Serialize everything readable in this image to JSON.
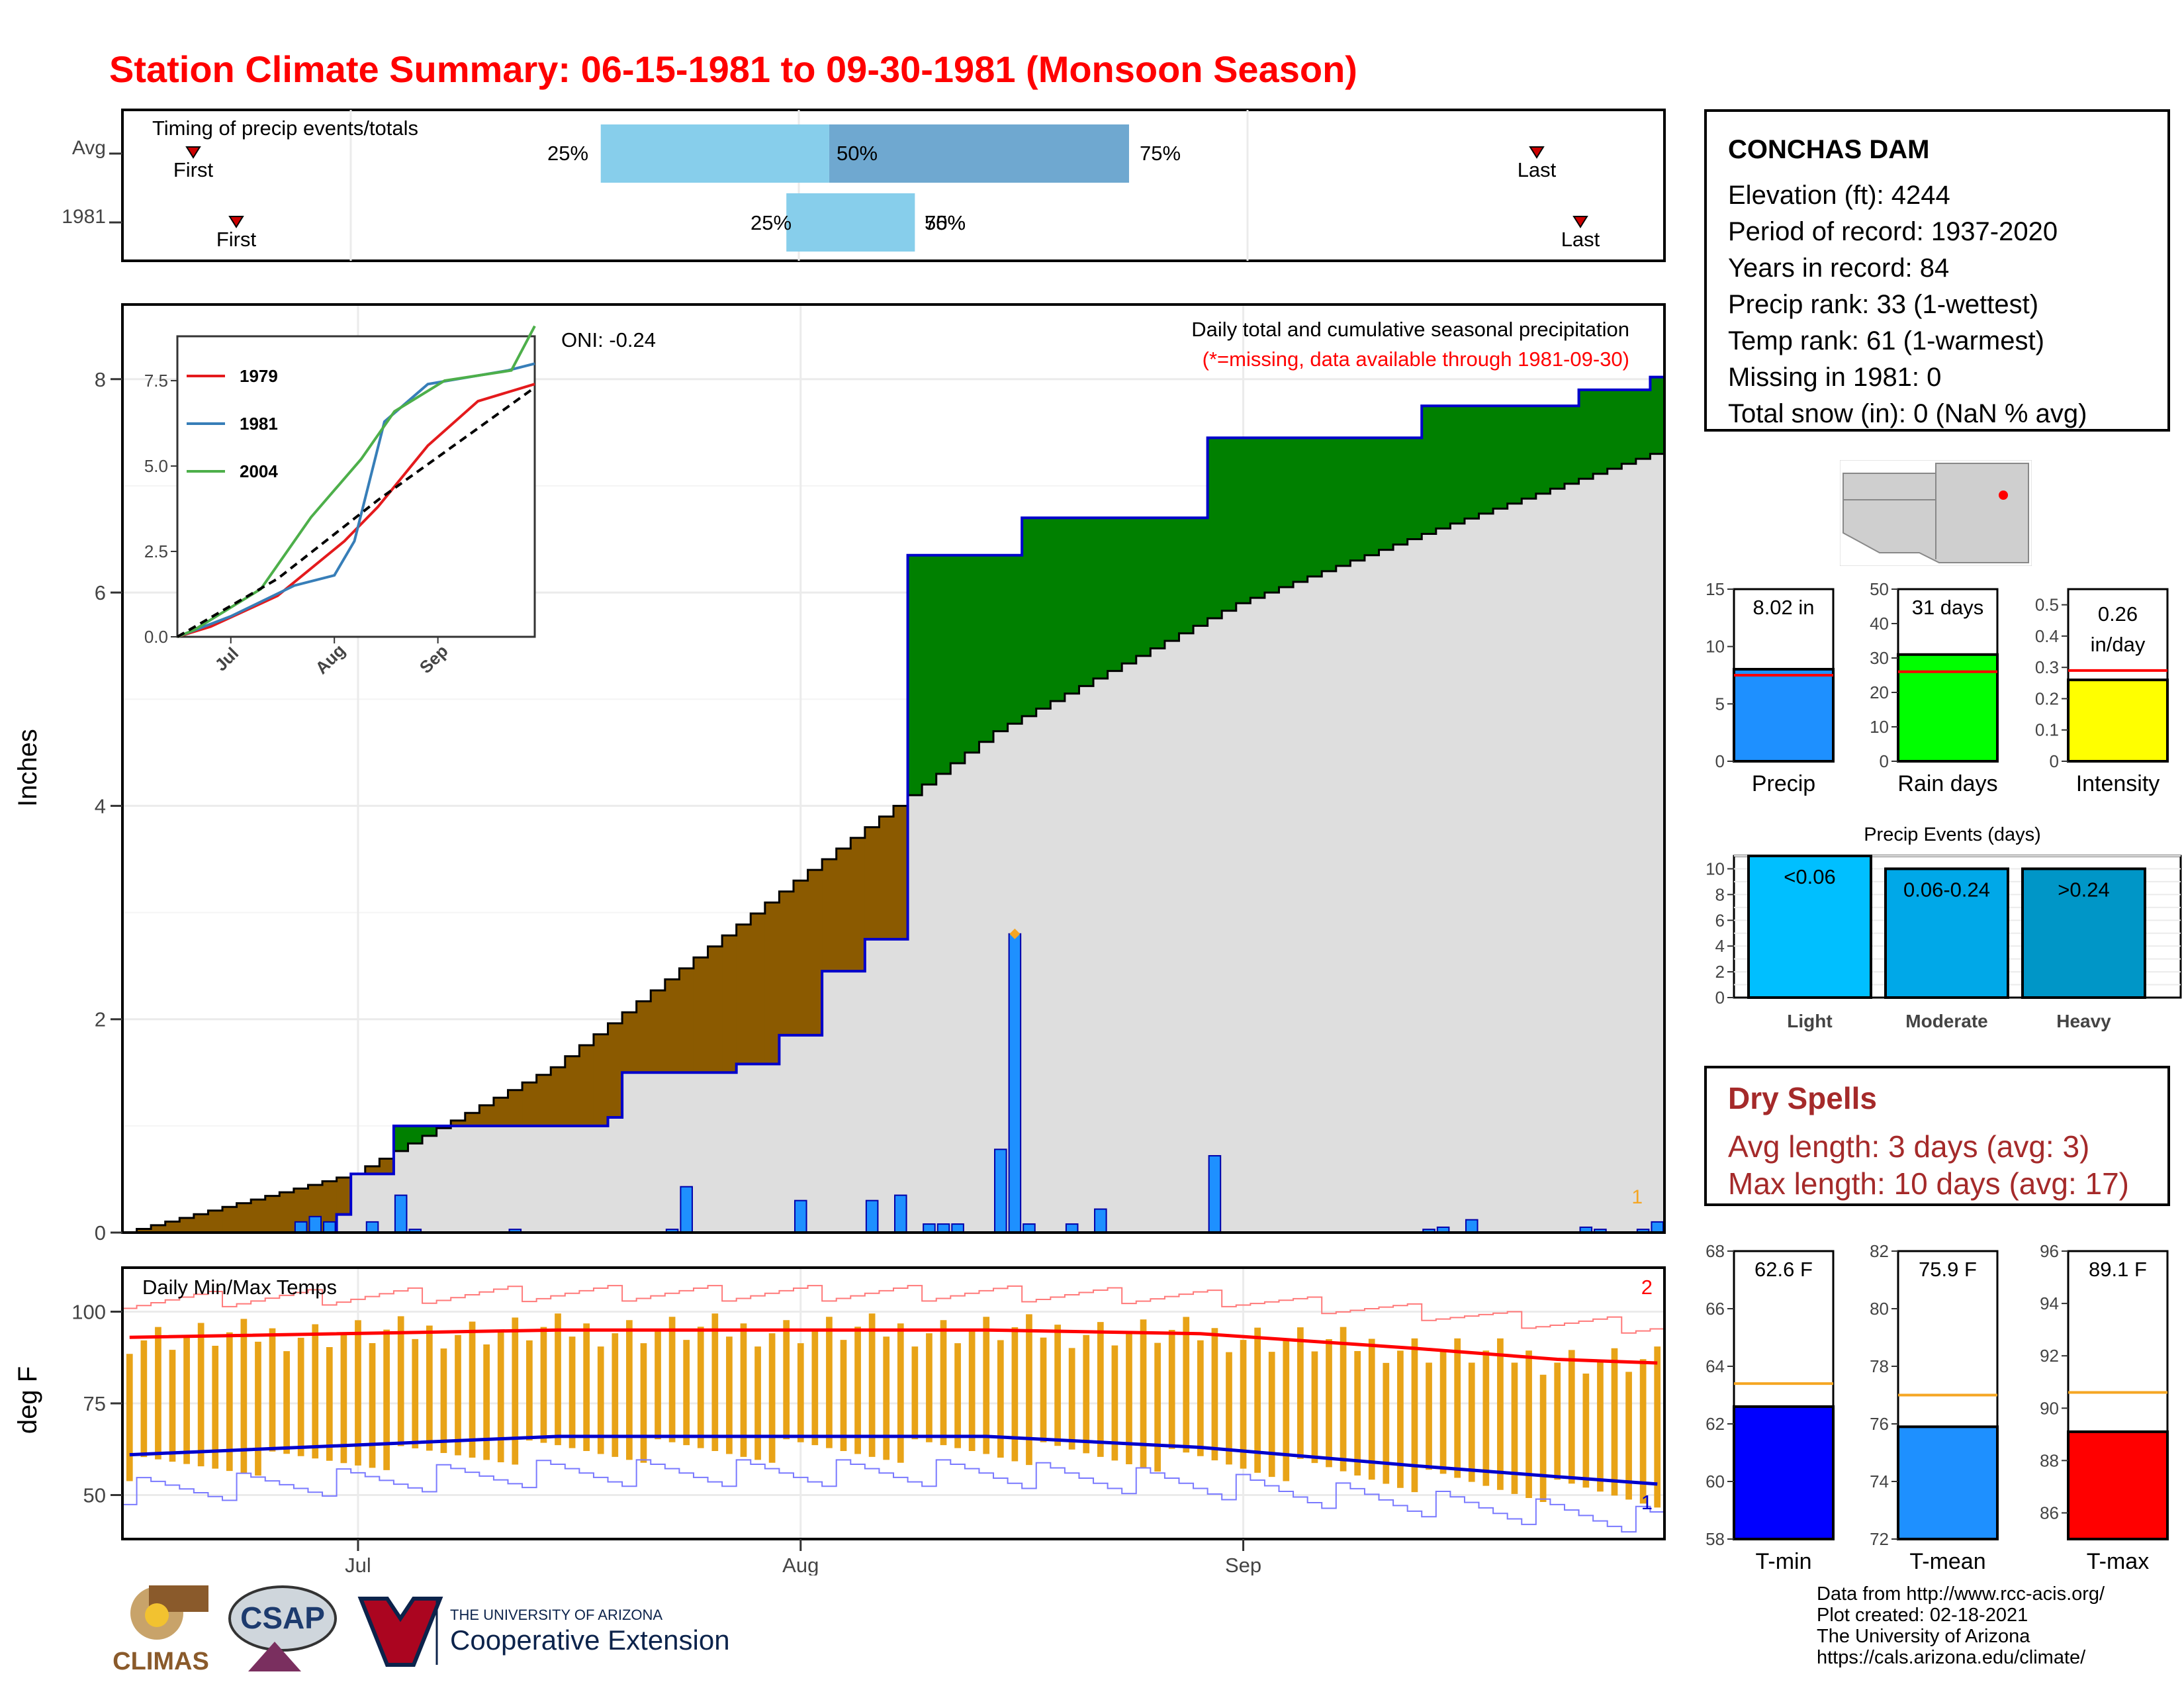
{
  "title": "Station Climate Summary: 06-15-1981 to 09-30-1981 (Monsoon Season)",
  "timing": {
    "label": "Timing of precip events/totals",
    "rows": [
      {
        "name": "Avg",
        "first_label": "First",
        "last_label": "Last",
        "pct": [
          "25%",
          "50%",
          "75%"
        ]
      },
      {
        "name": "1981",
        "first_label": "First",
        "last_label": "Last",
        "pct": [
          "25%",
          "50%",
          "75%"
        ]
      }
    ]
  },
  "station": {
    "name": "CONCHAS DAM",
    "lines": [
      "Elevation (ft): 4244",
      "Period of record: 1937-2020",
      "Years in record: 84",
      "Precip rank: 33 (1-wettest)",
      "Temp rank: 61 (1-warmest)",
      "Missing in 1981: 0",
      "Total snow (in): 0 (NaN % avg)"
    ]
  },
  "precip_panel": {
    "oni": "ONI: -0.24",
    "heading": "Daily total and cumulative seasonal precipitation",
    "note": "(*=missing, data available through 1981-09-30)",
    "ylabel": "Inches",
    "corner_num": "1"
  },
  "temp_panel": {
    "label": "Daily Min/Max Temps",
    "ylabel": "deg F",
    "corner_top": "2",
    "corner_bottom": "1"
  },
  "month_ticks": [
    "Jul",
    "Aug",
    "Sep"
  ],
  "stat_bars": [
    {
      "name": "Precip",
      "value_label": "8.02 in"
    },
    {
      "name": "Rain days",
      "value_label": "31 days"
    },
    {
      "name": "Intensity",
      "value_label": "0.26 in/day"
    }
  ],
  "events": {
    "title": "Precip Events (days)",
    "categories": [
      "Light",
      "Moderate",
      "Heavy"
    ],
    "bar_labels": [
      "<0.06",
      "0.06-0.24",
      ">0.24"
    ]
  },
  "dry_spells": {
    "title": "Dry Spells",
    "avg_line": "Avg length: 3 days (avg: 3)",
    "max_line": "Max length: 10 days (avg: 17)"
  },
  "temp_bars": [
    {
      "name": "T-min",
      "value_label": "62.6 F"
    },
    {
      "name": "T-mean",
      "value_label": "75.9 F"
    },
    {
      "name": "T-max",
      "value_label": "89.1 F"
    }
  ],
  "inset_legend": [
    "1979",
    "1981",
    "2004"
  ],
  "credits": [
    "Data from http://www.rcc-acis.org/",
    "Plot created: 02-18-2021",
    "The University of Arizona",
    "https://cals.arizona.edu/climate/"
  ],
  "logos": {
    "climas": "CLIMAS",
    "csap": "CSAP",
    "ua_small": "THE UNIVERSITY OF ARIZONA",
    "ua_big": "Cooperative Extension"
  },
  "colors": {
    "title": "#ff0000",
    "cum_obs_line": "#0000cc",
    "surplus": "#008000",
    "deficit": "#8b5a00",
    "avg_fill": "#dedede",
    "daily_bar": "#1e90ff",
    "tmax": "#ff0000",
    "tmin": "#0000cc",
    "temp_range": "#e8a317"
  },
  "chart_data": [
    {
      "type": "bar",
      "title": "Timing of precip events/totals",
      "categories": [
        "Avg",
        "1981"
      ],
      "x_range": [
        "1981-06-15",
        "1981-09-30"
      ],
      "series": [
        {
          "name": "First",
          "values": [
            "1981-06-20",
            "1981-06-26"
          ]
        },
        {
          "name": "25%",
          "values": [
            "1981-07-18",
            "1981-07-31"
          ]
        },
        {
          "name": "50%",
          "values": [
            "1981-08-03",
            "1981-08-09"
          ]
        },
        {
          "name": "75%",
          "values": [
            "1981-08-24",
            "1981-08-09"
          ]
        },
        {
          "name": "Last",
          "values": [
            "1981-09-25",
            "1981-09-30"
          ]
        }
      ]
    },
    {
      "type": "area",
      "title": "Daily total and cumulative seasonal precipitation",
      "xlabel": "",
      "ylabel": "Inches",
      "x_range": [
        "1981-06-15",
        "1981-09-30"
      ],
      "ylim": [
        0,
        8.7
      ],
      "y_ticks": [
        0,
        2,
        4,
        6,
        8
      ],
      "cumulative_1981": [
        {
          "date": "1981-06-15",
          "value": 0.0
        },
        {
          "date": "1981-06-30",
          "value": 0.17
        },
        {
          "date": "1981-07-01",
          "value": 0.55
        },
        {
          "date": "1981-07-04",
          "value": 1.0
        },
        {
          "date": "1981-07-19",
          "value": 1.08
        },
        {
          "date": "1981-07-20",
          "value": 1.5
        },
        {
          "date": "1981-07-28",
          "value": 1.58
        },
        {
          "date": "1981-07-31",
          "value": 1.85
        },
        {
          "date": "1981-08-03",
          "value": 2.45
        },
        {
          "date": "1981-08-06",
          "value": 2.75
        },
        {
          "date": "1981-08-09",
          "value": 6.35
        },
        {
          "date": "1981-08-17",
          "value": 6.7
        },
        {
          "date": "1981-08-30",
          "value": 7.45
        },
        {
          "date": "1981-09-14",
          "value": 7.75
        },
        {
          "date": "1981-09-25",
          "value": 7.9
        },
        {
          "date": "1981-09-30",
          "value": 8.02
        }
      ],
      "average_cumulative": [
        {
          "date": "1981-06-15",
          "value": 0.0
        },
        {
          "date": "1981-07-01",
          "value": 0.55
        },
        {
          "date": "1981-07-15",
          "value": 1.55
        },
        {
          "date": "1981-08-01",
          "value": 3.3
        },
        {
          "date": "1981-08-09",
          "value": 4.1
        },
        {
          "date": "1981-08-15",
          "value": 4.7
        },
        {
          "date": "1981-09-01",
          "value": 5.9
        },
        {
          "date": "1981-09-15",
          "value": 6.6
        },
        {
          "date": "1981-09-30",
          "value": 7.3
        }
      ],
      "daily_precip": [
        {
          "date": "1981-06-27",
          "value": 0.1
        },
        {
          "date": "1981-06-28",
          "value": 0.15
        },
        {
          "date": "1981-06-29",
          "value": 0.1
        },
        {
          "date": "1981-07-02",
          "value": 0.1
        },
        {
          "date": "1981-07-04",
          "value": 0.35
        },
        {
          "date": "1981-07-05",
          "value": 0.03
        },
        {
          "date": "1981-07-12",
          "value": 0.03
        },
        {
          "date": "1981-07-23",
          "value": 0.03
        },
        {
          "date": "1981-07-24",
          "value": 0.43
        },
        {
          "date": "1981-08-01",
          "value": 0.3
        },
        {
          "date": "1981-08-06",
          "value": 0.3
        },
        {
          "date": "1981-08-08",
          "value": 0.35
        },
        {
          "date": "1981-08-10",
          "value": 0.08
        },
        {
          "date": "1981-08-11",
          "value": 0.08
        },
        {
          "date": "1981-08-12",
          "value": 0.08
        },
        {
          "date": "1981-08-15",
          "value": 0.78
        },
        {
          "date": "1981-08-16",
          "value": 2.8
        },
        {
          "date": "1981-08-17",
          "value": 0.08
        },
        {
          "date": "1981-08-20",
          "value": 0.08
        },
        {
          "date": "1981-08-22",
          "value": 0.22
        },
        {
          "date": "1981-08-30",
          "value": 0.72
        },
        {
          "date": "1981-09-14",
          "value": 0.03
        },
        {
          "date": "1981-09-15",
          "value": 0.05
        },
        {
          "date": "1981-09-17",
          "value": 0.12
        },
        {
          "date": "1981-09-25",
          "value": 0.05
        },
        {
          "date": "1981-09-26",
          "value": 0.03
        },
        {
          "date": "1981-09-29",
          "value": 0.03
        },
        {
          "date": "1981-09-30",
          "value": 0.1
        }
      ]
    },
    {
      "type": "line",
      "title": "",
      "x_range": [
        "1981-06-15",
        "1981-09-30"
      ],
      "ylim": [
        0,
        8.8
      ],
      "y_ticks": [
        0.0,
        2.5,
        5.0,
        7.5
      ],
      "x_ticks": [
        "Jul",
        "Aug",
        "Sep"
      ],
      "series": [
        {
          "name": "1979",
          "values": [
            [
              0,
              0
            ],
            [
              10,
              0.3
            ],
            [
              30,
              1.2
            ],
            [
              50,
              2.8
            ],
            [
              60,
              3.8
            ],
            [
              75,
              5.6
            ],
            [
              90,
              6.9
            ],
            [
              107,
              7.4
            ]
          ]
        },
        {
          "name": "1981",
          "values": [
            [
              0,
              0
            ],
            [
              16,
              0.6
            ],
            [
              35,
              1.5
            ],
            [
              47,
              1.8
            ],
            [
              53,
              2.8
            ],
            [
              62,
              6.3
            ],
            [
              75,
              7.4
            ],
            [
              99,
              7.8
            ],
            [
              107,
              8.0
            ]
          ]
        },
        {
          "name": "2004",
          "values": [
            [
              0,
              0
            ],
            [
              5,
              0.2
            ],
            [
              25,
              1.4
            ],
            [
              40,
              3.5
            ],
            [
              55,
              5.2
            ],
            [
              65,
              6.6
            ],
            [
              80,
              7.5
            ],
            [
              100,
              7.8
            ],
            [
              107,
              9.1
            ]
          ]
        },
        {
          "name": "",
          "values": [
            [
              0,
              0
            ],
            [
              30,
              1.7
            ],
            [
              60,
              4.0
            ],
            [
              107,
              7.3
            ]
          ]
        }
      ]
    },
    {
      "type": "line",
      "title": "Daily Min/Max Temps",
      "ylabel": "deg F",
      "x_range": [
        "1981-06-15",
        "1981-09-30"
      ],
      "ylim": [
        38,
        112
      ],
      "y_ticks": [
        50,
        75,
        100
      ],
      "series": [
        {
          "name": "",
          "values": [
            [
              0,
              93
            ],
            [
              30,
              95
            ],
            [
              60,
              95
            ],
            [
              75,
              94
            ],
            [
              90,
              90
            ],
            [
              100,
              87
            ],
            [
              107,
              86
            ]
          ]
        },
        {
          "name": "",
          "values": [
            [
              0,
              61
            ],
            [
              30,
              66
            ],
            [
              60,
              66
            ],
            [
              75,
              63
            ],
            [
              90,
              58
            ],
            [
              100,
              55
            ],
            [
              107,
              53
            ]
          ]
        }
      ]
    },
    {
      "type": "bar",
      "categories": [
        "Precip",
        "Rain days",
        "Intensity"
      ],
      "series": [
        {
          "name": "1981",
          "values": [
            8.02,
            31,
            0.26
          ]
        },
        {
          "name": "Avg",
          "values": [
            7.5,
            26,
            0.29
          ]
        }
      ],
      "ylim": [
        [
          0,
          15
        ],
        [
          0,
          50
        ],
        [
          0,
          0.55
        ]
      ]
    },
    {
      "type": "bar",
      "title": "Precip Events (days)",
      "categories": [
        "Light",
        "Moderate",
        "Heavy"
      ],
      "values": [
        11,
        10,
        10
      ],
      "ylim": [
        0,
        11
      ],
      "y_ticks": [
        0,
        2,
        4,
        6,
        8,
        10
      ]
    },
    {
      "type": "bar",
      "categories": [
        "T-min",
        "T-mean",
        "T-max"
      ],
      "series": [
        {
          "name": "1981",
          "values": [
            62.6,
            75.9,
            89.1
          ]
        },
        {
          "name": "Avg",
          "values": [
            63.4,
            77.0,
            90.6
          ]
        }
      ],
      "ylim": [
        [
          58,
          68
        ],
        [
          72,
          82
        ],
        [
          85,
          96
        ]
      ]
    }
  ]
}
